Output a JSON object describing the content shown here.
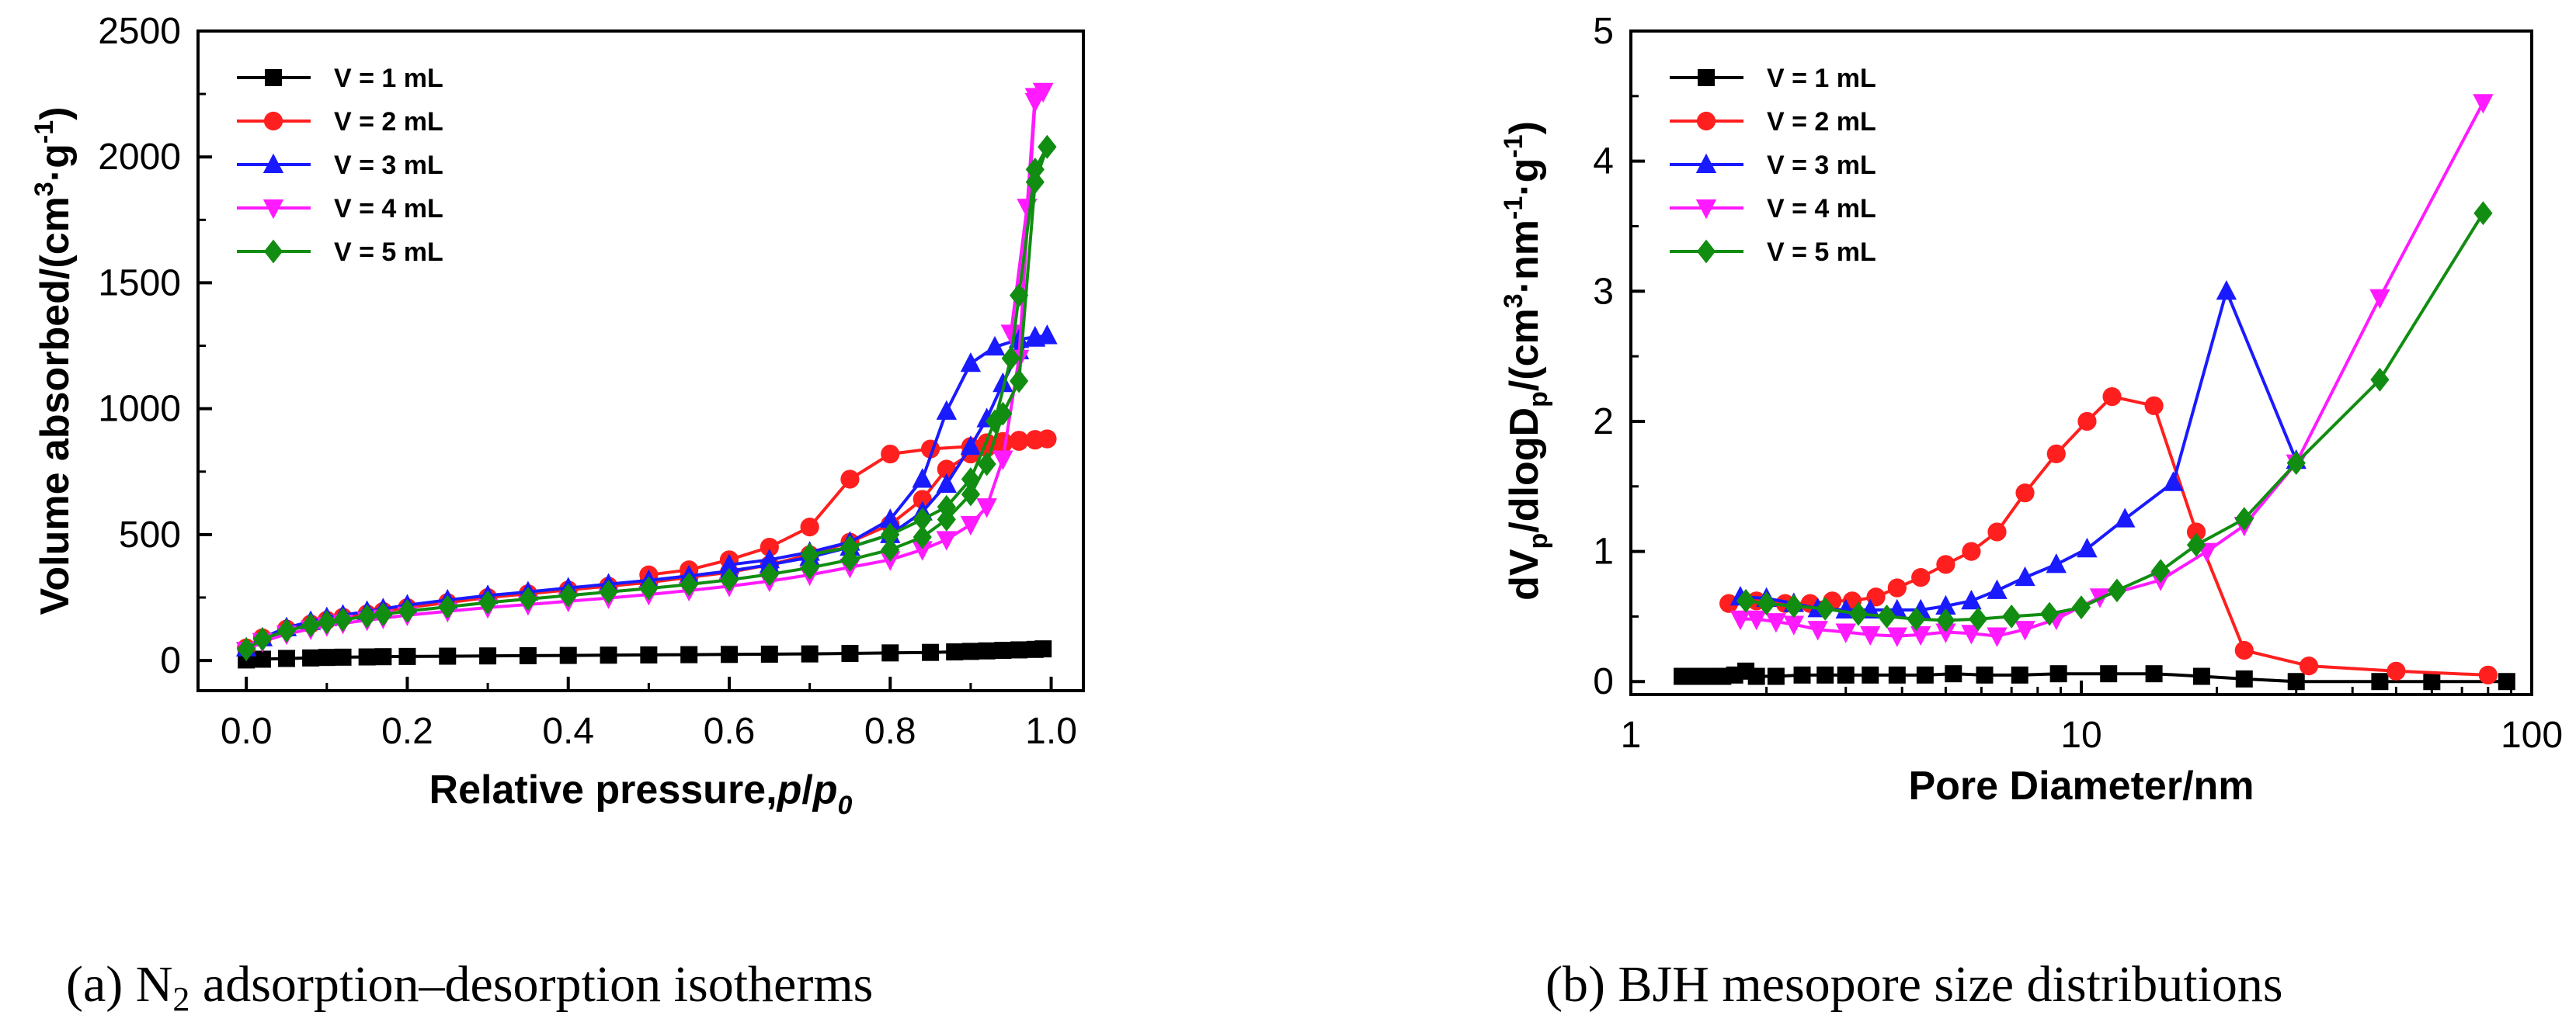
{
  "chart_data": [
    {
      "type": "line",
      "title": "",
      "xlabel": "Relative pressure,p/p0",
      "xlabel_parts": {
        "main": "Relative pressure,",
        "p": "p",
        "slash": "/",
        "p0": "p",
        "sub0": "0"
      },
      "ylabel": "Volume absorbed/(cm3·g-1)",
      "ylabel_parts": {
        "main": "Volume absorbed/(cm",
        "sup3": "3",
        "mid": "·g",
        "supm1": "-1",
        "end": ")"
      },
      "xlim": [
        -0.06,
        1.04
      ],
      "ylim": [
        -120,
        2500
      ],
      "xticks": [
        "0.0",
        "0.2",
        "0.4",
        "0.6",
        "0.8",
        "1.0"
      ],
      "xtick_values": [
        0,
        0.2,
        0.4,
        0.6,
        0.8,
        1.0
      ],
      "yticks": [
        "0",
        "500",
        "1000",
        "1500",
        "2000",
        "2500"
      ],
      "ytick_values": [
        0,
        500,
        1000,
        1500,
        2000,
        2500
      ],
      "legend_position": "top-left",
      "caption": "(a) N2 adsorption–desorption isotherms",
      "caption_parts": {
        "pre": "(a) N",
        "sub": "2",
        "post": " adsorption–desorption isotherms"
      },
      "series": [
        {
          "name": "V = 1 mL",
          "color": "#000000",
          "marker": "square",
          "adsorption": {
            "x": [
              0.0,
              0.02,
              0.05,
              0.08,
              0.1,
              0.12,
              0.15,
              0.17,
              0.2,
              0.25,
              0.3,
              0.35,
              0.4,
              0.45,
              0.5,
              0.55,
              0.6,
              0.65,
              0.7,
              0.75,
              0.8,
              0.85,
              0.88,
              0.9,
              0.92,
              0.94,
              0.96,
              0.98,
              0.99
            ],
            "y": [
              2,
              5,
              8,
              10,
              12,
              13,
              14,
              15,
              16,
              17,
              18,
              19,
              20,
              21,
              22,
              23,
              24,
              25,
              26,
              28,
              30,
              32,
              34,
              36,
              38,
              40,
              42,
              44,
              46
            ]
          }
        },
        {
          "name": "V = 2 mL",
          "color": "#ff1f1f",
          "marker": "circle",
          "adsorption": {
            "x": [
              0.0,
              0.02,
              0.05,
              0.08,
              0.1,
              0.12,
              0.15,
              0.17,
              0.2,
              0.25,
              0.3,
              0.35,
              0.4,
              0.45,
              0.5,
              0.55,
              0.6,
              0.65,
              0.7,
              0.75,
              0.8,
              0.84,
              0.87,
              0.9,
              0.92,
              0.94,
              0.96,
              0.98,
              0.995
            ],
            "y": [
              50,
              90,
              125,
              145,
              160,
              172,
              185,
              195,
              210,
              230,
              250,
              265,
              280,
              295,
              310,
              330,
              350,
              380,
              420,
              470,
              540,
              640,
              760,
              820,
              845,
              860,
              870,
              875,
              880
            ]
          },
          "desorption": {
            "x": [
              0.995,
              0.98,
              0.96,
              0.94,
              0.92,
              0.9,
              0.85,
              0.8,
              0.75,
              0.7,
              0.65,
              0.6,
              0.55,
              0.5
            ],
            "y": [
              880,
              878,
              875,
              870,
              865,
              850,
              840,
              820,
              720,
              530,
              450,
              400,
              360,
              340
            ]
          }
        },
        {
          "name": "V = 3 mL",
          "color": "#1a1aff",
          "marker": "triangle",
          "adsorption": {
            "x": [
              0.0,
              0.02,
              0.05,
              0.08,
              0.1,
              0.12,
              0.15,
              0.17,
              0.2,
              0.25,
              0.3,
              0.35,
              0.4,
              0.45,
              0.5,
              0.55,
              0.6,
              0.65,
              0.7,
              0.75,
              0.8,
              0.84,
              0.87,
              0.9,
              0.92,
              0.94,
              0.96,
              0.98,
              0.995
            ],
            "y": [
              50,
              90,
              130,
              155,
              170,
              180,
              195,
              205,
              220,
              240,
              258,
              272,
              288,
              303,
              318,
              336,
              355,
              380,
              410,
              450,
              500,
              590,
              700,
              850,
              960,
              1100,
              1230,
              1280,
              1290
            ]
          },
          "desorption": {
            "x": [
              0.995,
              0.98,
              0.96,
              0.93,
              0.9,
              0.87,
              0.84,
              0.8,
              0.75,
              0.7,
              0.65,
              0.6
            ],
            "y": [
              1290,
              1285,
              1275,
              1245,
              1180,
              990,
              720,
              560,
              470,
              430,
              400,
              380
            ]
          }
        },
        {
          "name": "V = 4 mL",
          "color": "#ff1aff",
          "marker": "triangle-down",
          "adsorption": {
            "x": [
              0.0,
              0.02,
              0.05,
              0.08,
              0.1,
              0.12,
              0.15,
              0.17,
              0.2,
              0.25,
              0.3,
              0.35,
              0.4,
              0.45,
              0.5,
              0.55,
              0.6,
              0.65,
              0.7,
              0.75,
              0.8,
              0.84,
              0.87,
              0.9,
              0.92,
              0.94,
              0.96,
              0.98,
              0.99
            ],
            "y": [
              40,
              75,
              105,
              125,
              138,
              148,
              160,
              168,
              180,
              195,
              210,
              222,
              235,
              248,
              262,
              278,
              295,
              315,
              340,
              370,
              400,
              440,
              480,
              540,
              610,
              800,
              1200,
              2220,
              2260
            ]
          },
          "desorption": {
            "x": [
              0.99,
              0.98,
              0.97,
              0.95
            ],
            "y": [
              2260,
              2240,
              1800,
              1300
            ]
          }
        },
        {
          "name": "V = 5 mL",
          "color": "#118d11",
          "marker": "diamond",
          "adsorption": {
            "x": [
              0.0,
              0.02,
              0.05,
              0.08,
              0.1,
              0.12,
              0.15,
              0.17,
              0.2,
              0.25,
              0.3,
              0.35,
              0.4,
              0.45,
              0.5,
              0.55,
              0.6,
              0.65,
              0.7,
              0.75,
              0.8,
              0.84,
              0.87,
              0.9,
              0.92,
              0.94,
              0.96,
              0.98,
              0.995
            ],
            "y": [
              45,
              85,
              118,
              140,
              152,
              162,
              175,
              183,
              196,
              213,
              230,
              244,
              258,
              272,
              286,
              302,
              320,
              342,
              368,
              400,
              440,
              490,
              560,
              660,
              780,
              980,
              1110,
              1900,
              2040
            ]
          },
          "desorption": {
            "x": [
              0.995,
              0.98,
              0.96,
              0.95,
              0.93,
              0.9,
              0.87,
              0.84,
              0.8,
              0.75,
              0.7
            ],
            "y": [
              2040,
              1950,
              1450,
              1200,
              950,
              720,
              610,
              560,
              500,
              450,
              420
            ]
          }
        }
      ]
    },
    {
      "type": "line",
      "title": "",
      "xlabel": "Pore Diameter/nm",
      "ylabel": "dVp/dlogDp/(cm3·nm-1·g-1)",
      "ylabel_parts": {
        "a": "dV",
        "b": "p",
        "c": "/dlogD",
        "d": "p",
        "e": "/(cm",
        "f": "3",
        "g": "·nm",
        "h": "-1",
        "i": "·g",
        "j": "-1",
        "k": ")"
      },
      "xscale": "log",
      "xlim": [
        1,
        100
      ],
      "ylim": [
        -0.1,
        5
      ],
      "xticks": [
        "1",
        "10",
        "100"
      ],
      "xtick_values": [
        1,
        10,
        100
      ],
      "yticks": [
        "0",
        "1",
        "2",
        "3",
        "4",
        "5"
      ],
      "ytick_values": [
        0,
        1,
        2,
        3,
        4,
        5
      ],
      "legend_position": "top-left",
      "caption": "(b) BJH mesopore size distributions",
      "series": [
        {
          "name": "V = 1 mL",
          "color": "#000000",
          "marker": "square",
          "x": [
            1.3,
            1.4,
            1.5,
            1.6,
            1.7,
            1.8,
            1.9,
            2.1,
            2.4,
            2.7,
            3.0,
            3.4,
            3.9,
            4.5,
            5.2,
            6.1,
            7.3,
            8.9,
            11.5,
            14.5,
            18.5,
            23,
            30,
            46,
            60,
            88
          ],
          "y": [
            0.04,
            0.04,
            0.04,
            0.04,
            0.05,
            0.08,
            0.04,
            0.04,
            0.05,
            0.05,
            0.05,
            0.05,
            0.05,
            0.05,
            0.06,
            0.05,
            0.05,
            0.06,
            0.06,
            0.06,
            0.04,
            0.02,
            0.0,
            0.0,
            0.0,
            0.0
          ]
        },
        {
          "name": "V = 2 mL",
          "color": "#ff1f1f",
          "marker": "circle",
          "x": [
            1.65,
            1.9,
            2.2,
            2.5,
            2.8,
            3.1,
            3.5,
            3.9,
            4.4,
            5.0,
            5.7,
            6.5,
            7.5,
            8.8,
            10.3,
            11.7,
            14.5,
            18,
            23,
            32,
            50,
            80
          ],
          "y": [
            0.6,
            0.62,
            0.6,
            0.6,
            0.62,
            0.62,
            0.65,
            0.72,
            0.8,
            0.9,
            1.0,
            1.15,
            1.45,
            1.75,
            2.0,
            2.19,
            2.12,
            1.15,
            0.24,
            0.12,
            0.08,
            0.05
          ]
        },
        {
          "name": "V = 3 mL",
          "color": "#1a1aff",
          "marker": "triangle",
          "x": [
            1.75,
            2.0,
            2.3,
            2.6,
            3.0,
            3.4,
            3.9,
            4.4,
            5.0,
            5.7,
            6.5,
            7.5,
            8.8,
            10.3,
            12.5,
            16,
            21,
            30
          ],
          "y": [
            0.65,
            0.64,
            0.6,
            0.56,
            0.55,
            0.55,
            0.55,
            0.55,
            0.58,
            0.62,
            0.7,
            0.8,
            0.9,
            1.02,
            1.25,
            1.53,
            3.0,
            1.7
          ]
        },
        {
          "name": "V = 4 mL",
          "color": "#ff1aff",
          "marker": "triangle-down",
          "x": [
            1.75,
            1.9,
            2.1,
            2.3,
            2.6,
            3.0,
            3.4,
            3.9,
            4.4,
            5.0,
            5.7,
            6.5,
            7.5,
            8.8,
            11,
            15,
            19,
            23,
            30,
            46,
            78
          ],
          "y": [
            0.48,
            0.48,
            0.46,
            0.44,
            0.4,
            0.38,
            0.36,
            0.35,
            0.36,
            0.38,
            0.37,
            0.35,
            0.4,
            0.48,
            0.65,
            0.78,
            1.0,
            1.2,
            1.68,
            2.95,
            4.45
          ]
        },
        {
          "name": "V = 5 mL",
          "color": "#118d11",
          "marker": "diamond",
          "x": [
            1.8,
            2.0,
            2.3,
            2.7,
            3.2,
            3.7,
            4.3,
            5.0,
            5.9,
            7.0,
            8.5,
            10,
            12,
            15,
            18,
            23,
            30,
            46,
            78
          ],
          "y": [
            0.62,
            0.6,
            0.58,
            0.56,
            0.52,
            0.5,
            0.48,
            0.47,
            0.48,
            0.5,
            0.52,
            0.57,
            0.7,
            0.85,
            1.05,
            1.25,
            1.68,
            2.32,
            3.6
          ]
        }
      ]
    }
  ]
}
